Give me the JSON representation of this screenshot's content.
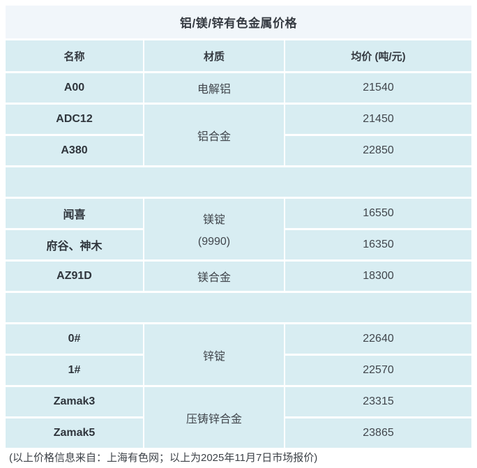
{
  "page": {
    "title": "铝/镁/锌有色金属价格",
    "footer": "(以上价格信息来自：上海有色网；以上为2025年11月7日市场报价)"
  },
  "colors": {
    "cell_background": "#d8edf2",
    "title_background": "#f1f6fa",
    "text": "#3d4248",
    "page_background": "#ffffff"
  },
  "table": {
    "headers": {
      "name": "名称",
      "material": "材质",
      "price": "均价 (吨/元)"
    },
    "rows": [
      {
        "name": "A00",
        "material": "电解铝",
        "price": "21540"
      },
      {
        "name": "ADC12",
        "material": "铝合金",
        "material_rowspan": 2,
        "price": "21450"
      },
      {
        "name": "A380",
        "price": "22850"
      },
      {
        "spacer": true
      },
      {
        "name": "闻喜",
        "material": "镁锭",
        "material_sub": "(9990)",
        "material_rowspan": 2,
        "price": "16550"
      },
      {
        "name": "府谷、神木",
        "price": "16350"
      },
      {
        "name": "AZ91D",
        "material": "镁合金",
        "price": "18300"
      },
      {
        "spacer": true
      },
      {
        "name": "0#",
        "material": "锌锭",
        "material_rowspan": 2,
        "price": "22640"
      },
      {
        "name": "1#",
        "price": "22570"
      },
      {
        "name": "Zamak3",
        "material": "压铸锌合金",
        "material_rowspan": 2,
        "price": "23315"
      },
      {
        "name": "Zamak5",
        "price": "23865"
      }
    ]
  }
}
